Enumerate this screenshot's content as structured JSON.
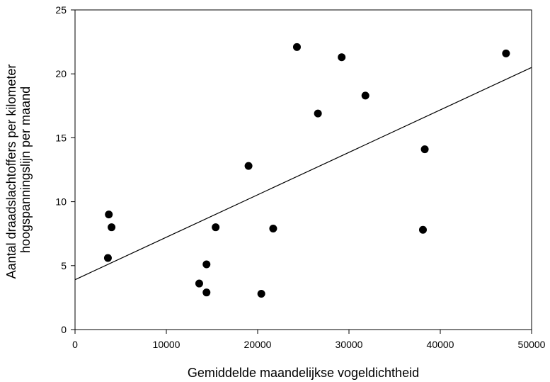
{
  "chart_data": {
    "type": "scatter",
    "xlabel": "Gemiddelde maandelijkse vogeldichtheid",
    "ylabel": [
      "Aantal draadslachtoffers per kilometer",
      "hoogspanningslijn per maand"
    ],
    "xlim": [
      0,
      50000
    ],
    "ylim": [
      0,
      25
    ],
    "x_ticks": [
      0,
      10000,
      20000,
      30000,
      40000,
      50000
    ],
    "y_ticks": [
      0,
      5,
      10,
      15,
      20,
      25
    ],
    "x_tick_labels": [
      "0",
      "10000",
      "20000",
      "30000",
      "40000",
      "50000"
    ],
    "y_tick_labels": [
      "0",
      "5",
      "10",
      "15",
      "20",
      "25"
    ],
    "grid": false,
    "legend": false,
    "points": [
      {
        "x": 3700,
        "y": 9.0
      },
      {
        "x": 4000,
        "y": 8.0
      },
      {
        "x": 3600,
        "y": 5.6
      },
      {
        "x": 13600,
        "y": 3.6
      },
      {
        "x": 14400,
        "y": 5.1
      },
      {
        "x": 14400,
        "y": 2.9
      },
      {
        "x": 15400,
        "y": 8.0
      },
      {
        "x": 19000,
        "y": 12.8
      },
      {
        "x": 20400,
        "y": 2.8
      },
      {
        "x": 21700,
        "y": 7.9
      },
      {
        "x": 24300,
        "y": 22.1
      },
      {
        "x": 26600,
        "y": 16.9
      },
      {
        "x": 29200,
        "y": 21.3
      },
      {
        "x": 31800,
        "y": 18.3
      },
      {
        "x": 38100,
        "y": 7.8
      },
      {
        "x": 38300,
        "y": 14.1
      },
      {
        "x": 47200,
        "y": 21.6
      }
    ],
    "trendline": {
      "x": [
        0,
        50000
      ],
      "y": [
        3.9,
        20.5
      ]
    }
  }
}
